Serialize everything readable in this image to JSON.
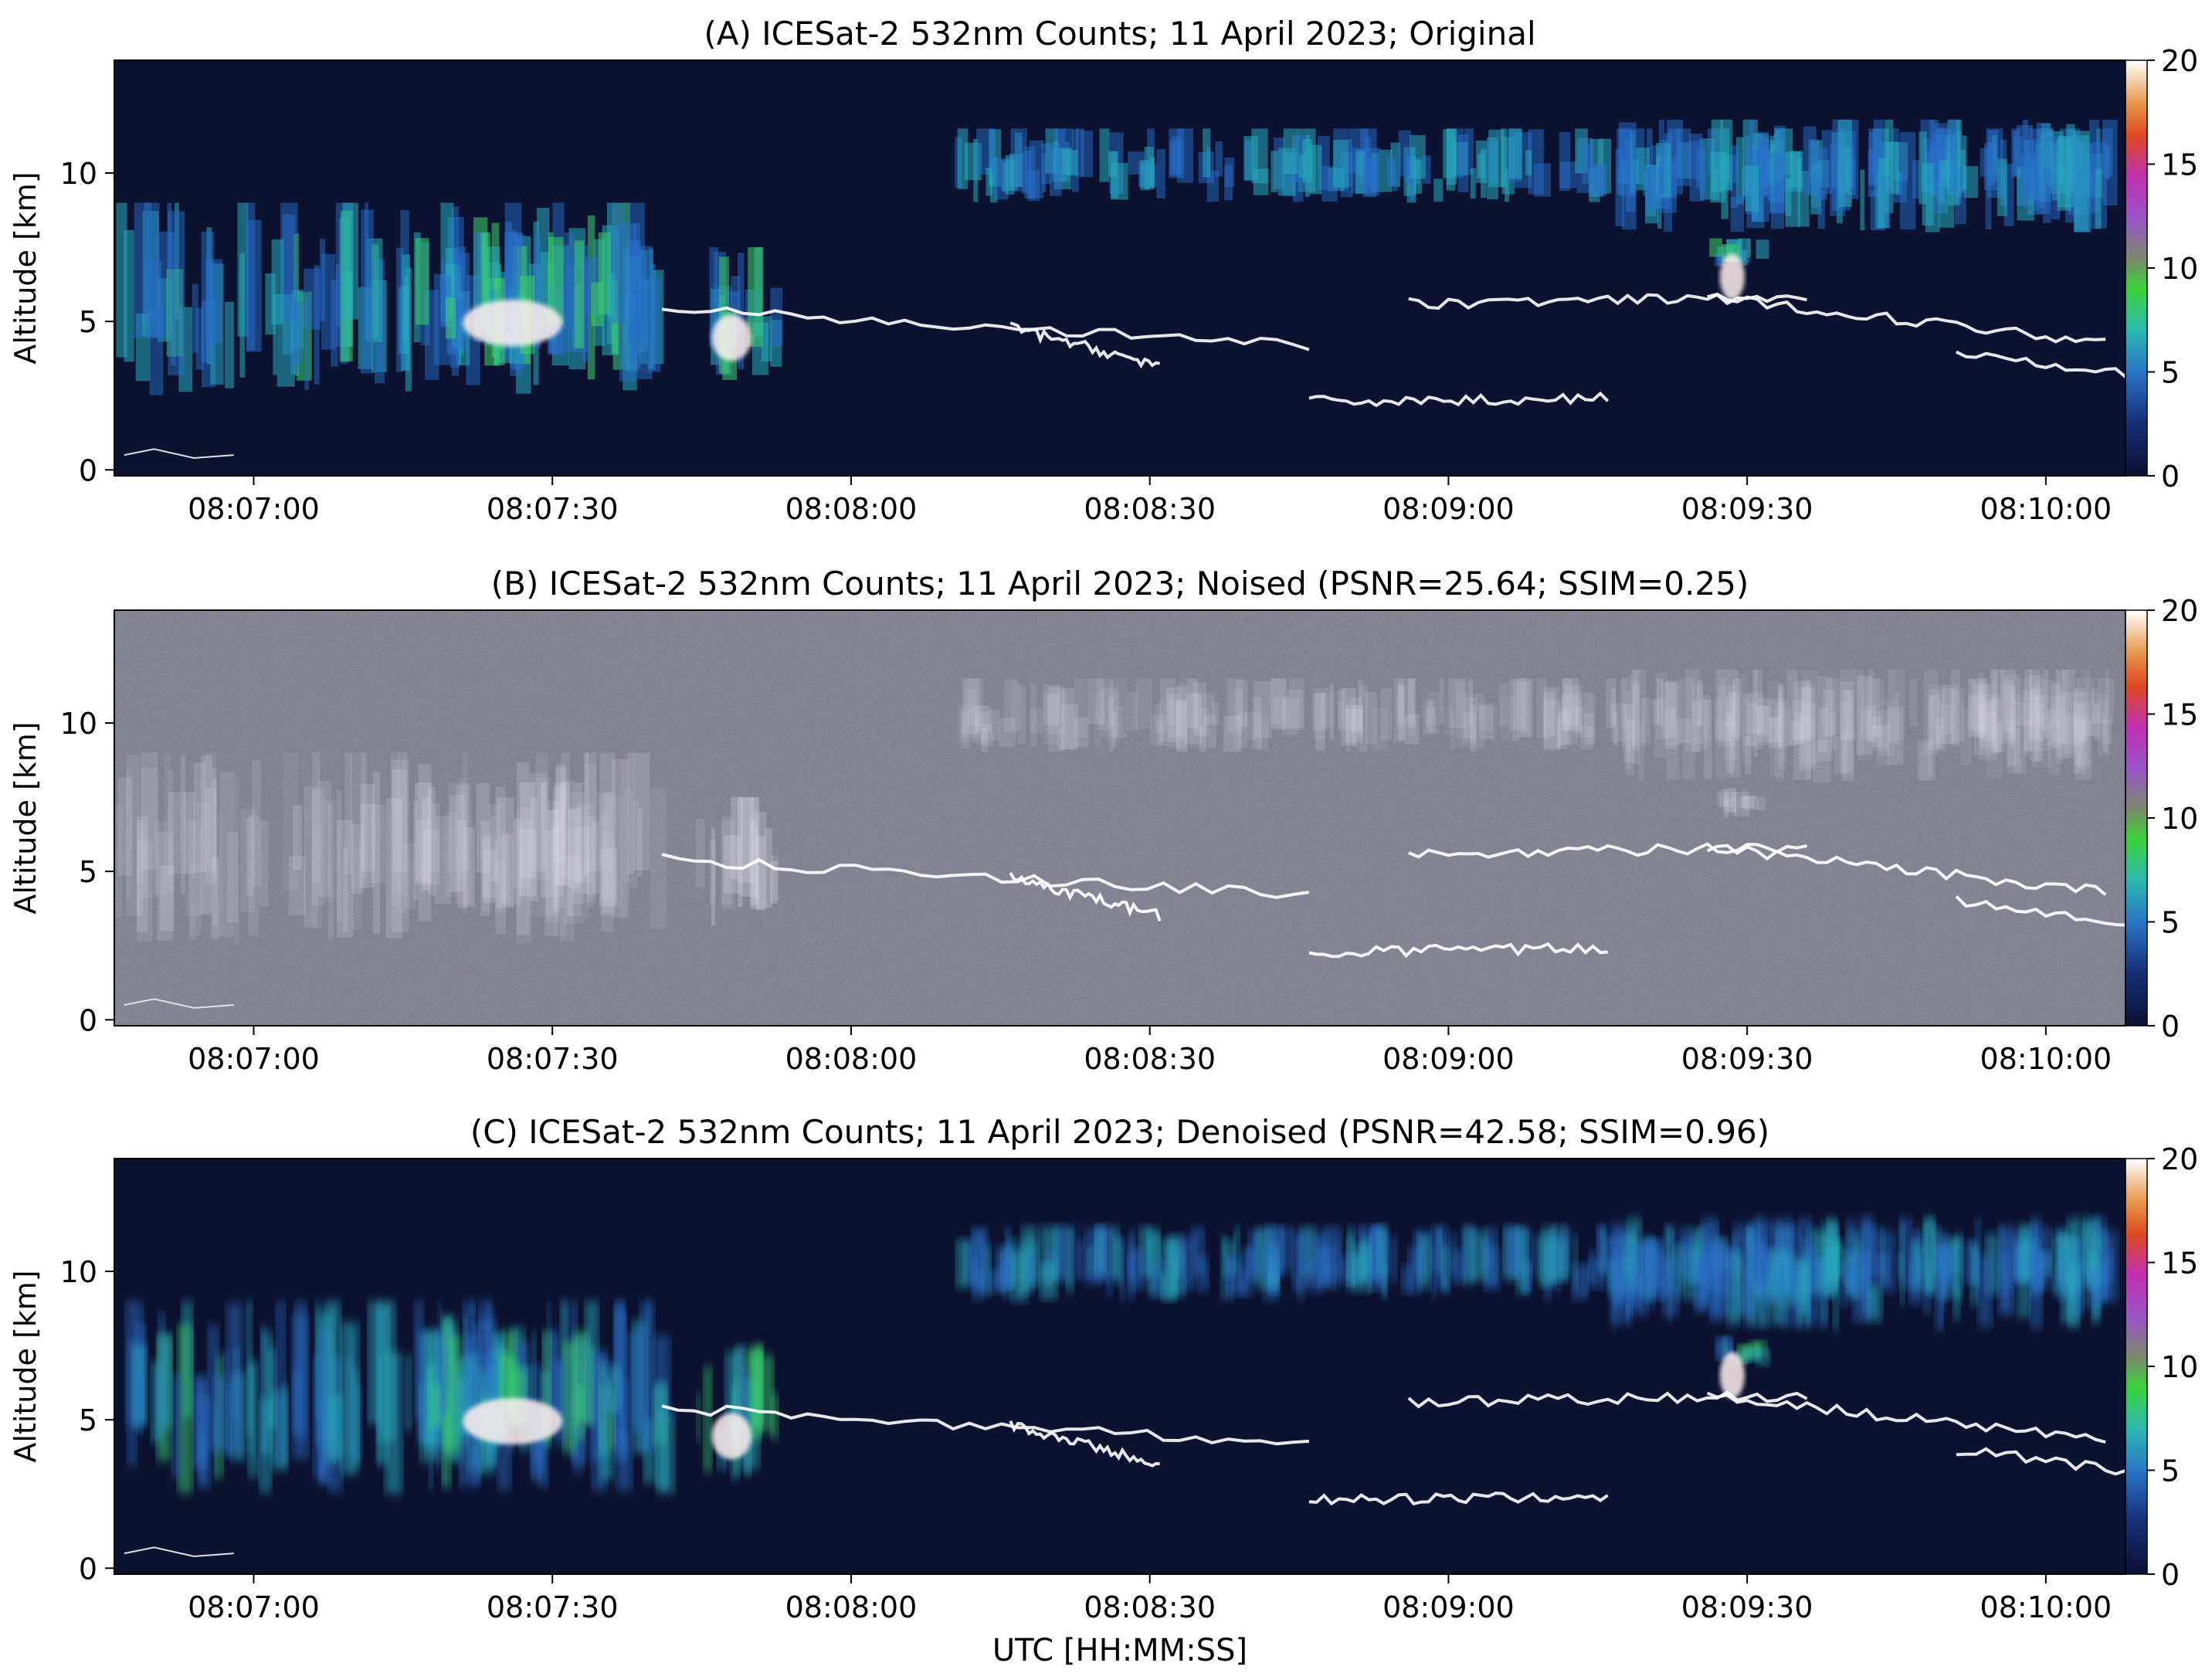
{
  "figure": {
    "shared_xlabel": "UTC [HH:MM:SS]"
  },
  "chart_data": [
    {
      "type": "heatmap",
      "title": "(A) ICESat-2 532nm Counts; 11 April 2023; Original",
      "ylabel": "Altitude [km]",
      "xlabel": "",
      "x_range_seconds_utc": [
        "08:06:46",
        "08:10:08"
      ],
      "x_ticks": [
        "08:07:00",
        "08:07:30",
        "08:08:00",
        "08:08:30",
        "08:09:00",
        "08:09:30",
        "08:10:00"
      ],
      "ylim": [
        -0.2,
        13.8
      ],
      "y_ticks": [
        0,
        5,
        10
      ],
      "colorbar": {
        "range": [
          0,
          20
        ],
        "ticks": [
          0,
          5,
          10,
          15,
          20
        ]
      },
      "variant": "original"
    },
    {
      "type": "heatmap",
      "title": "(B) ICESat-2 532nm Counts; 11 April 2023; Noised (PSNR=25.64; SSIM=0.25)",
      "ylabel": "Altitude [km]",
      "xlabel": "",
      "x_range_seconds_utc": [
        "08:06:46",
        "08:10:08"
      ],
      "x_ticks": [
        "08:07:00",
        "08:07:30",
        "08:08:00",
        "08:08:30",
        "08:09:00",
        "08:09:30",
        "08:10:00"
      ],
      "ylim": [
        -0.2,
        13.8
      ],
      "y_ticks": [
        0,
        5,
        10
      ],
      "colorbar": {
        "range": [
          0,
          20
        ],
        "ticks": [
          0,
          5,
          10,
          15,
          20
        ]
      },
      "metrics": {
        "PSNR": 25.64,
        "SSIM": 0.25
      },
      "variant": "noised"
    },
    {
      "type": "heatmap",
      "title": "(C) ICESat-2 532nm Counts; 11 April 2023; Denoised (PSNR=42.58; SSIM=0.96)",
      "ylabel": "Altitude [km]",
      "xlabel": "UTC [HH:MM:SS]",
      "x_range_seconds_utc": [
        "08:06:46",
        "08:10:08"
      ],
      "x_ticks": [
        "08:07:00",
        "08:07:30",
        "08:08:00",
        "08:08:30",
        "08:09:00",
        "08:09:30",
        "08:10:00"
      ],
      "ylim": [
        -0.2,
        13.8
      ],
      "y_ticks": [
        0,
        5,
        10
      ],
      "colorbar": {
        "range": [
          0,
          20
        ],
        "ticks": [
          0,
          5,
          10,
          15,
          20
        ]
      },
      "metrics": {
        "PSNR": 42.58,
        "SSIM": 0.96
      },
      "variant": "denoised"
    }
  ]
}
